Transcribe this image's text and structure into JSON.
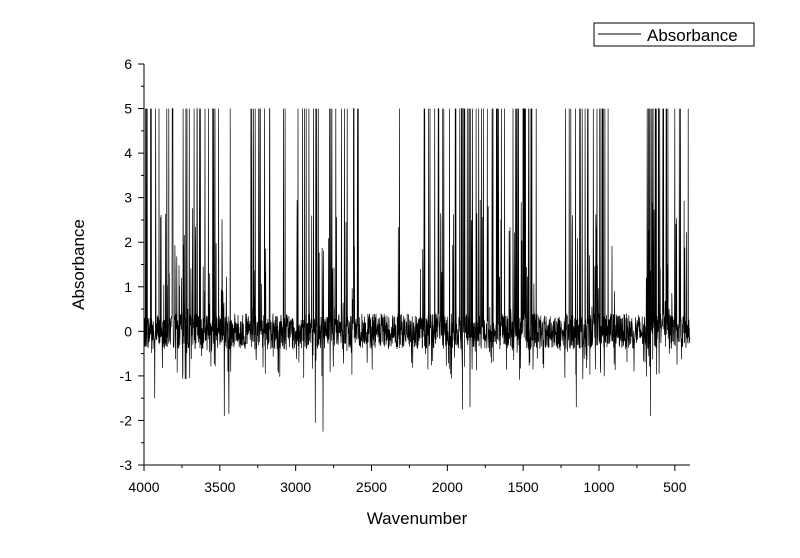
{
  "chart_data": {
    "type": "line",
    "title": "",
    "xlabel": "Wavenumber",
    "ylabel": "Absorbance",
    "xlim": [
      4000,
      400
    ],
    "x_reversed": true,
    "ylim": [
      -3,
      6
    ],
    "x_ticks": [
      4000,
      3500,
      3000,
      2500,
      2000,
      1500,
      1000,
      500
    ],
    "x_tick_labels": [
      "4000",
      "3500",
      "3000",
      "2500",
      "2000",
      "1500",
      "1000",
      "500"
    ],
    "y_ticks": [
      -3,
      -2,
      -1,
      0,
      1,
      2,
      3,
      4,
      5,
      6
    ],
    "y_tick_labels": [
      "-3",
      "-2",
      "-1",
      "0",
      "1",
      "2",
      "3",
      "4",
      "5",
      "6"
    ],
    "grid": false,
    "legend_position": "top-right",
    "line_color": "#000000",
    "series": [
      {
        "name": "Absorbance",
        "generation": "dense noisy spectrum: baseline near 0 with frequent saturated spikes to 5 inside the given ranges and occasional dips",
        "seed": 7,
        "baseline": 0,
        "noise_amplitude": 0.4,
        "saturation_value": 5,
        "spike_ranges": [
          [
            3990,
            3380
          ],
          [
            3300,
            3050
          ],
          [
            3000,
            2710
          ],
          [
            2700,
            2580
          ],
          [
            2330,
            2300
          ],
          [
            2180,
            1400
          ],
          [
            1230,
            880
          ],
          [
            690,
            400
          ]
        ],
        "dips": [
          {
            "x": 3930,
            "y": -1.5
          },
          {
            "x": 3470,
            "y": -1.9
          },
          {
            "x": 3440,
            "y": -1.85
          },
          {
            "x": 2870,
            "y": -2.05
          },
          {
            "x": 2820,
            "y": -2.25
          },
          {
            "x": 1900,
            "y": -1.75
          },
          {
            "x": 1850,
            "y": -1.7
          },
          {
            "x": 1150,
            "y": -1.7
          },
          {
            "x": 660,
            "y": -1.9
          }
        ]
      }
    ]
  }
}
